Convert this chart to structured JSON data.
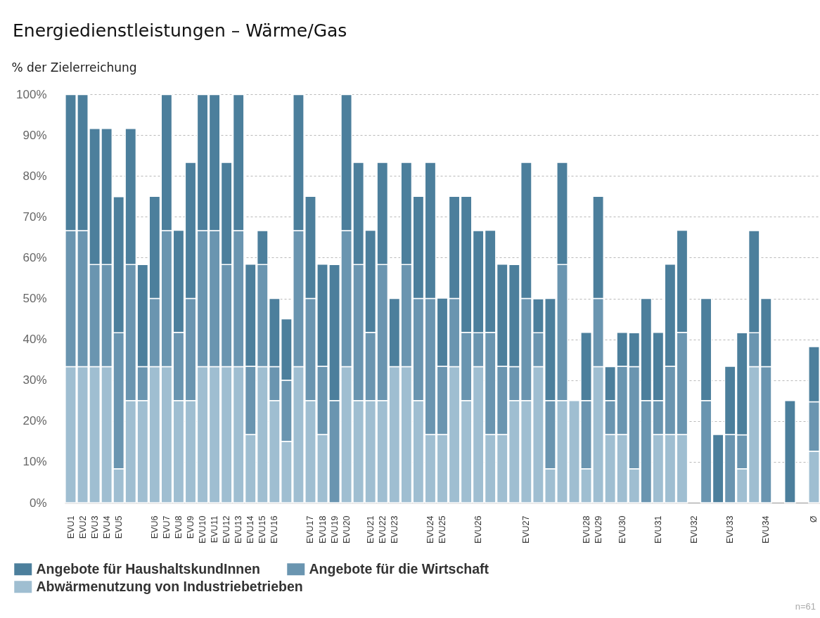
{
  "chart_data": {
    "type": "bar",
    "stacked": true,
    "title": "Energiedienstleistungen – Wärme/Gas",
    "ylabel": "% der Zielerreichung",
    "categories": [
      "EVU1",
      "EVU2",
      "EVU3",
      "EVU4",
      "EVU5",
      null,
      null,
      "EVU6",
      "EVU7",
      "EVU8",
      "EVU9",
      "EVU10",
      "EVU11",
      "EVU12",
      "EVU13",
      "EVU14",
      "EVU15",
      "EVU16",
      null,
      null,
      "EVU17",
      "EVU18",
      "EVU19",
      "EVU20",
      null,
      "EVU21",
      "EVU22",
      "EVU23",
      null,
      null,
      "EVU24",
      "EVU25",
      null,
      null,
      "EVU26",
      null,
      null,
      null,
      "EVU27",
      null,
      null,
      null,
      null,
      "EVU28",
      "EVU29",
      null,
      "EVU30",
      null,
      null,
      "EVU31",
      null,
      null,
      "EVU32",
      null,
      null,
      "EVU33",
      null,
      null,
      "EVU34",
      null,
      null,
      null,
      "Ø"
    ],
    "series": [
      {
        "name": "Abwärmenutzung von Industriebetrieben",
        "color": "#9fbed1",
        "values": [
          33.3,
          33.3,
          33.3,
          33.3,
          8.3,
          25,
          25,
          33.3,
          33.3,
          25,
          25,
          33.3,
          33.3,
          33.3,
          33.3,
          16.7,
          33.3,
          25,
          15,
          33.3,
          25,
          16.7,
          0,
          33.3,
          25,
          25,
          25,
          33.3,
          33.3,
          25,
          16.7,
          16.7,
          33.3,
          25,
          33.3,
          16.7,
          16.7,
          25,
          25,
          33.3,
          8.3,
          25,
          25,
          8.3,
          33.3,
          16.7,
          16.7,
          8.3,
          0,
          16.7,
          16.7,
          16.7,
          0,
          0,
          0,
          0,
          8.3,
          33.3,
          0,
          0,
          0,
          null,
          12.6
        ]
      },
      {
        "name": "Angebote für die Wirtschaft",
        "color": "#6a95b0",
        "values": [
          33.3,
          33.3,
          25,
          25,
          33.3,
          33.3,
          8.3,
          16.7,
          33.3,
          16.7,
          25,
          33.3,
          33.3,
          25,
          33.3,
          16.7,
          25,
          8.3,
          15,
          33.3,
          25,
          16.7,
          25,
          33.3,
          33.3,
          16.7,
          33.3,
          0,
          25,
          25,
          33.3,
          16.7,
          16.7,
          16.7,
          8.3,
          25,
          16.7,
          8.3,
          25,
          8.3,
          16.7,
          33.3,
          0,
          16.7,
          16.7,
          8.3,
          16.7,
          25,
          25,
          8.3,
          16.7,
          25,
          0,
          25,
          0,
          16.7,
          8.3,
          8.3,
          33.3,
          0,
          0,
          null,
          12.1
        ]
      },
      {
        "name": "Angebote für HaushaltskundInnen",
        "color": "#4c7f9c",
        "values": [
          33.3,
          33.3,
          33.3,
          33.3,
          33.3,
          33.3,
          25,
          25,
          33.3,
          25,
          33.3,
          33.3,
          33.3,
          25,
          33.3,
          25,
          8.3,
          16.7,
          15,
          33.3,
          25,
          25,
          33.3,
          33.3,
          25,
          25,
          25,
          16.7,
          25,
          25,
          33.3,
          16.7,
          25,
          33.3,
          25,
          25,
          25,
          25,
          33.3,
          8.3,
          25,
          25,
          0,
          16.7,
          25,
          8.3,
          8.3,
          8.3,
          25,
          16.7,
          25,
          25,
          0,
          25,
          16.7,
          16.7,
          25,
          25,
          16.7,
          0,
          25,
          null,
          13.5
        ]
      }
    ],
    "ylim": [
      0,
      100
    ],
    "yticks": [
      {
        "value": 0,
        "label": "0%"
      },
      {
        "value": 10,
        "label": "10%"
      },
      {
        "value": 20,
        "label": "20%"
      },
      {
        "value": 30,
        "label": "30%"
      },
      {
        "value": 40,
        "label": "40%"
      },
      {
        "value": 50,
        "label": "50%"
      },
      {
        "value": 60,
        "label": "60%"
      },
      {
        "value": 70,
        "label": "70%"
      },
      {
        "value": 80,
        "label": "80%"
      },
      {
        "value": 90,
        "label": "90%"
      },
      {
        "value": 100,
        "label": "100%"
      }
    ],
    "grid": "y",
    "legend": "bottom",
    "annotations": [
      "n=61"
    ]
  }
}
